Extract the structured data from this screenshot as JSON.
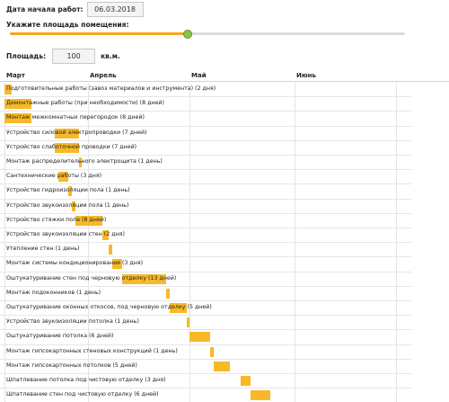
{
  "form": {
    "start_date_label": "Дата начала работ:",
    "start_date_value": "06.03.2018",
    "area_caption": "Укажите площадь помещения:",
    "area_label": "Площадь:",
    "area_value": "100",
    "area_unit": "кв.м.",
    "slider_level": 0.45
  },
  "colors": {
    "bar": "#f7b928",
    "slider_fill": "#f2a91a",
    "slider_thumb": "#8cc34a"
  },
  "timeline": {
    "months": [
      "Март",
      "Апрель",
      "Май",
      "Июнь"
    ]
  },
  "tasks": [
    {
      "label": "Подготовительные работы (завоз материалов и инструмента) (2 дня)",
      "start_day": 0,
      "days": 2
    },
    {
      "label": "Демонтажные работы (при необходимости) (8 дней)",
      "start_day": 0,
      "days": 8
    },
    {
      "label": "Монтаж межкомнатных перегородок (8 дней)",
      "start_day": 0,
      "days": 8
    },
    {
      "label": "Устройство силовой электропроводки (7 дней)",
      "start_day": 15,
      "days": 7
    },
    {
      "label": "Устройство слаботочной проводки (7 дней)",
      "start_day": 15,
      "days": 7
    },
    {
      "label": "Монтаж распределительного электрощита (1 день)",
      "start_day": 22,
      "days": 1
    },
    {
      "label": "Сантехнические работы (3 дня)",
      "start_day": 16,
      "days": 3
    },
    {
      "label": "Устройство гидроизоляции пола (1 день)",
      "start_day": 19,
      "days": 1
    },
    {
      "label": "Устройство звукоизоляции пола (1 день)",
      "start_day": 20,
      "days": 1
    },
    {
      "label": "Устройство стяжки пола (8 дней)",
      "start_day": 21,
      "days": 8
    },
    {
      "label": "Устройство звукоизоляции стен (2 дня)",
      "start_day": 29,
      "days": 2
    },
    {
      "label": "Утепление стен (1 день)",
      "start_day": 31,
      "days": 1
    },
    {
      "label": "Монтаж системы кондиционирования (3 дня)",
      "start_day": 32,
      "days": 3
    },
    {
      "label": "Оштукатуривание стен под черновую отделку (13 дней)",
      "start_day": 35,
      "days": 13
    },
    {
      "label": "Монтаж подоконников (1 день)",
      "start_day": 48,
      "days": 1
    },
    {
      "label": "Оштукатуривание оконных откосов, под черновую отделку (5 дней)",
      "start_day": 49,
      "days": 5
    },
    {
      "label": "Устройство звукоизоляции потолка (1 день)",
      "start_day": 54,
      "days": 1
    },
    {
      "label": "Оштукатуривание потолка (6 дней)",
      "start_day": 55,
      "days": 6
    },
    {
      "label": "Монтаж гипсокартонных стеновых конструкций (1 день)",
      "start_day": 61,
      "days": 1
    },
    {
      "label": "Монтаж гипсокартонных потолков (5 дней)",
      "start_day": 62,
      "days": 5
    },
    {
      "label": "Шпатлевание потолка под чистовую отделку (3 дня)",
      "start_day": 70,
      "days": 3
    },
    {
      "label": "Шпатлевание стен под чистовую отделку (6 дней)",
      "start_day": 73,
      "days": 6
    }
  ]
}
